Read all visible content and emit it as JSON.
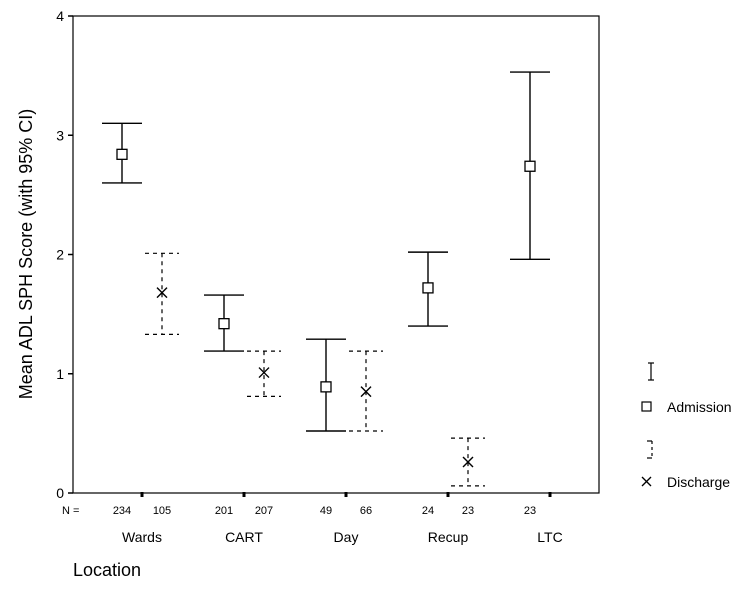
{
  "chart_data": {
    "type": "errorbar",
    "title": "",
    "xlabel": "Location",
    "ylabel": "Mean ADL SPH Score (with 95% CI)",
    "ylim": [
      0,
      4
    ],
    "yticks": [
      "0",
      "1",
      "2",
      "3",
      "4"
    ],
    "categories": [
      "Wards",
      "CART",
      "Day",
      "Recup",
      "LTC"
    ],
    "n_prefix": "N =",
    "series": [
      {
        "name": "Admission",
        "marker": "square",
        "line": "solid",
        "points": [
          {
            "category": "Wards",
            "n": "234",
            "mean": 2.84,
            "lower": 2.6,
            "upper": 3.1
          },
          {
            "category": "CART",
            "n": "201",
            "mean": 1.42,
            "lower": 1.19,
            "upper": 1.66
          },
          {
            "category": "Day",
            "n": "49",
            "mean": 0.89,
            "lower": 0.52,
            "upper": 1.29
          },
          {
            "category": "Recup",
            "n": "24",
            "mean": 1.72,
            "lower": 1.4,
            "upper": 2.02
          },
          {
            "category": "LTC",
            "n": "23",
            "mean": 2.74,
            "lower": 1.96,
            "upper": 3.53
          }
        ]
      },
      {
        "name": "Discharge",
        "marker": "x",
        "line": "dashed",
        "points": [
          {
            "category": "Wards",
            "n": "105",
            "mean": 1.68,
            "lower": 1.33,
            "upper": 2.01
          },
          {
            "category": "CART",
            "n": "207",
            "mean": 1.01,
            "lower": 0.81,
            "upper": 1.19
          },
          {
            "category": "Day",
            "n": "66",
            "mean": 0.85,
            "lower": 0.52,
            "upper": 1.19
          },
          {
            "category": "Recup",
            "n": "23",
            "mean": 0.26,
            "lower": 0.06,
            "upper": 0.46
          }
        ]
      }
    ],
    "legend_position": "right",
    "grid": false
  }
}
